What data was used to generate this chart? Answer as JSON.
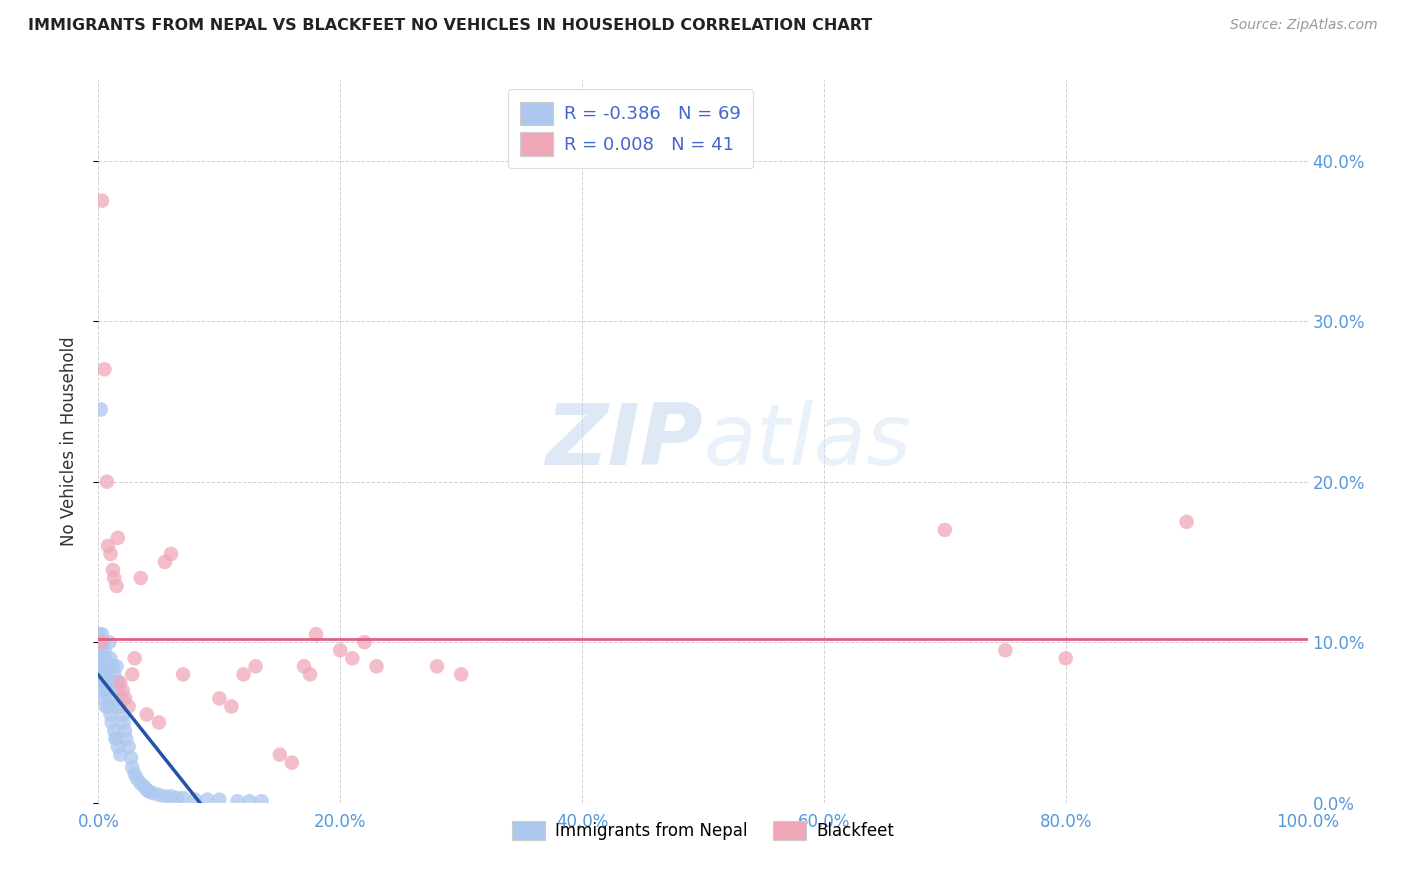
{
  "title": "IMMIGRANTS FROM NEPAL VS BLACKFEET NO VEHICLES IN HOUSEHOLD CORRELATION CHART",
  "source": "Source: ZipAtlas.com",
  "tick_color": "#5599dd",
  "ylabel": "No Vehicles in Household",
  "xlim": [
    0,
    1.0
  ],
  "ylim": [
    0,
    0.45
  ],
  "xticks": [
    0.0,
    0.2,
    0.4,
    0.6,
    0.8,
    1.0
  ],
  "xticklabels": [
    "0.0%",
    "20.0%",
    "40.0%",
    "60.0%",
    "80.0%",
    "100.0%"
  ],
  "yticks": [
    0.0,
    0.1,
    0.2,
    0.3,
    0.4
  ],
  "yticklabels_right": [
    "0.0%",
    "10.0%",
    "20.0%",
    "30.0%",
    "40.0%"
  ],
  "legend_r_nepal": "-0.386",
  "legend_n_nepal": "69",
  "legend_r_blackfeet": "0.008",
  "legend_n_blackfeet": "41",
  "nepal_color": "#adc8ef",
  "nepal_line_color": "#2255aa",
  "blackfeet_color": "#f0a8b8",
  "blackfeet_line_color": "#e06080",
  "watermark_zip": "ZIP",
  "watermark_atlas": "atlas",
  "nepal_scatter_x": [
    0.0005,
    0.001,
    0.001,
    0.001,
    0.002,
    0.002,
    0.002,
    0.003,
    0.003,
    0.003,
    0.004,
    0.004,
    0.004,
    0.005,
    0.005,
    0.005,
    0.006,
    0.006,
    0.006,
    0.007,
    0.007,
    0.008,
    0.008,
    0.009,
    0.009,
    0.01,
    0.01,
    0.011,
    0.011,
    0.012,
    0.012,
    0.013,
    0.013,
    0.014,
    0.014,
    0.015,
    0.015,
    0.016,
    0.016,
    0.017,
    0.018,
    0.018,
    0.019,
    0.02,
    0.021,
    0.022,
    0.023,
    0.025,
    0.027,
    0.028,
    0.03,
    0.032,
    0.035,
    0.038,
    0.04,
    0.042,
    0.045,
    0.05,
    0.055,
    0.06,
    0.065,
    0.07,
    0.08,
    0.09,
    0.1,
    0.115,
    0.125,
    0.135,
    0.002
  ],
  "nepal_scatter_y": [
    0.105,
    0.095,
    0.09,
    0.085,
    0.1,
    0.095,
    0.08,
    0.105,
    0.09,
    0.075,
    0.1,
    0.085,
    0.07,
    0.095,
    0.08,
    0.065,
    0.09,
    0.075,
    0.06,
    0.085,
    0.07,
    0.08,
    0.06,
    0.1,
    0.065,
    0.09,
    0.055,
    0.075,
    0.05,
    0.085,
    0.06,
    0.08,
    0.045,
    0.075,
    0.04,
    0.085,
    0.04,
    0.075,
    0.035,
    0.07,
    0.06,
    0.03,
    0.065,
    0.055,
    0.05,
    0.045,
    0.04,
    0.035,
    0.028,
    0.022,
    0.018,
    0.015,
    0.012,
    0.01,
    0.008,
    0.007,
    0.006,
    0.005,
    0.004,
    0.004,
    0.003,
    0.003,
    0.002,
    0.002,
    0.002,
    0.001,
    0.001,
    0.001,
    0.245
  ],
  "blackfeet_scatter_x": [
    0.002,
    0.003,
    0.005,
    0.007,
    0.008,
    0.01,
    0.012,
    0.013,
    0.015,
    0.016,
    0.018,
    0.02,
    0.022,
    0.025,
    0.028,
    0.03,
    0.035,
    0.04,
    0.05,
    0.055,
    0.06,
    0.07,
    0.1,
    0.11,
    0.12,
    0.13,
    0.15,
    0.16,
    0.17,
    0.175,
    0.18,
    0.2,
    0.21,
    0.22,
    0.23,
    0.28,
    0.3,
    0.7,
    0.75,
    0.8,
    0.9
  ],
  "blackfeet_scatter_y": [
    0.1,
    0.375,
    0.27,
    0.2,
    0.16,
    0.155,
    0.145,
    0.14,
    0.135,
    0.165,
    0.075,
    0.07,
    0.065,
    0.06,
    0.08,
    0.09,
    0.14,
    0.055,
    0.05,
    0.15,
    0.155,
    0.08,
    0.065,
    0.06,
    0.08,
    0.085,
    0.03,
    0.025,
    0.085,
    0.08,
    0.105,
    0.095,
    0.09,
    0.1,
    0.085,
    0.085,
    0.08,
    0.17,
    0.095,
    0.09,
    0.175
  ]
}
